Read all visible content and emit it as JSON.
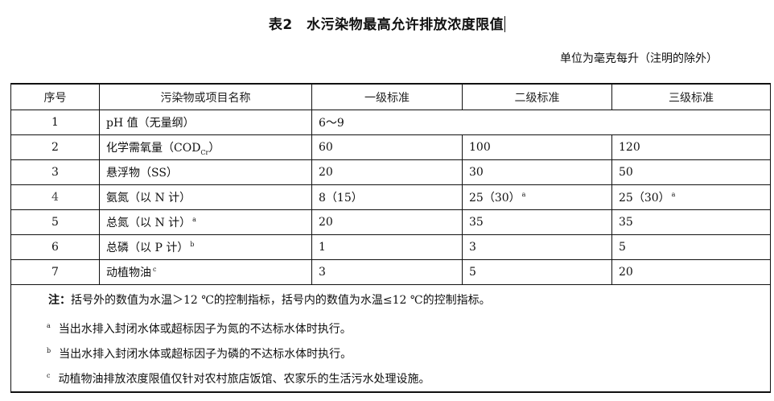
{
  "title": "表2　水污染物最高允许排放浓度限值",
  "unit_note": "单位为毫克每升（注明的除外）",
  "table": {
    "headers": [
      "序号",
      "污染物或项目名称",
      "一级标准",
      "二级标准",
      "三级标准"
    ],
    "rows": [
      {
        "no": "1",
        "name": "pH 值（无量纲）",
        "sup": "",
        "merged": "6～9"
      },
      {
        "no": "2",
        "name": "化学需氧量（COD",
        "sub": "Cr",
        "name_end": "）",
        "v1": "60",
        "v2": "100",
        "v3": "120"
      },
      {
        "no": "3",
        "name": "悬浮物（SS）",
        "sup": "",
        "v1": "20",
        "v2": "30",
        "v3": "50"
      },
      {
        "no": "4",
        "name": "氨氮（以 N 计）",
        "sup": "",
        "v1": "8（15）",
        "v2": "25（30）",
        "v2_sup": "a",
        "v3": "25（30）",
        "v3_sup": "a"
      },
      {
        "no": "5",
        "name": "总氮（以 N 计）",
        "sup": "a",
        "v1": "20",
        "v2": "35",
        "v3": "35"
      },
      {
        "no": "6",
        "name": "总磷（以 P 计）",
        "sup": "b",
        "v1": "1",
        "v2": "3",
        "v3": "5"
      },
      {
        "no": "7",
        "name": "动植物油",
        "sup": "c",
        "v1": "3",
        "v2": "5",
        "v3": "20"
      }
    ]
  },
  "notes": {
    "label": "注：",
    "main": "括号外的数值为水温＞12 ℃的控制指标，括号内的数值为水温≤12 ℃的控制指标。",
    "footnotes": [
      {
        "mark": "a",
        "text": "当出水排入封闭水体或超标因子为氮的不达标水体时执行。"
      },
      {
        "mark": "b",
        "text": "当出水排入封闭水体或超标因子为磷的不达标水体时执行。"
      },
      {
        "mark": "c",
        "text": "动植物油排放浓度限值仅针对农村旅店饭馆、农家乐的生活污水处理设施。"
      }
    ]
  }
}
